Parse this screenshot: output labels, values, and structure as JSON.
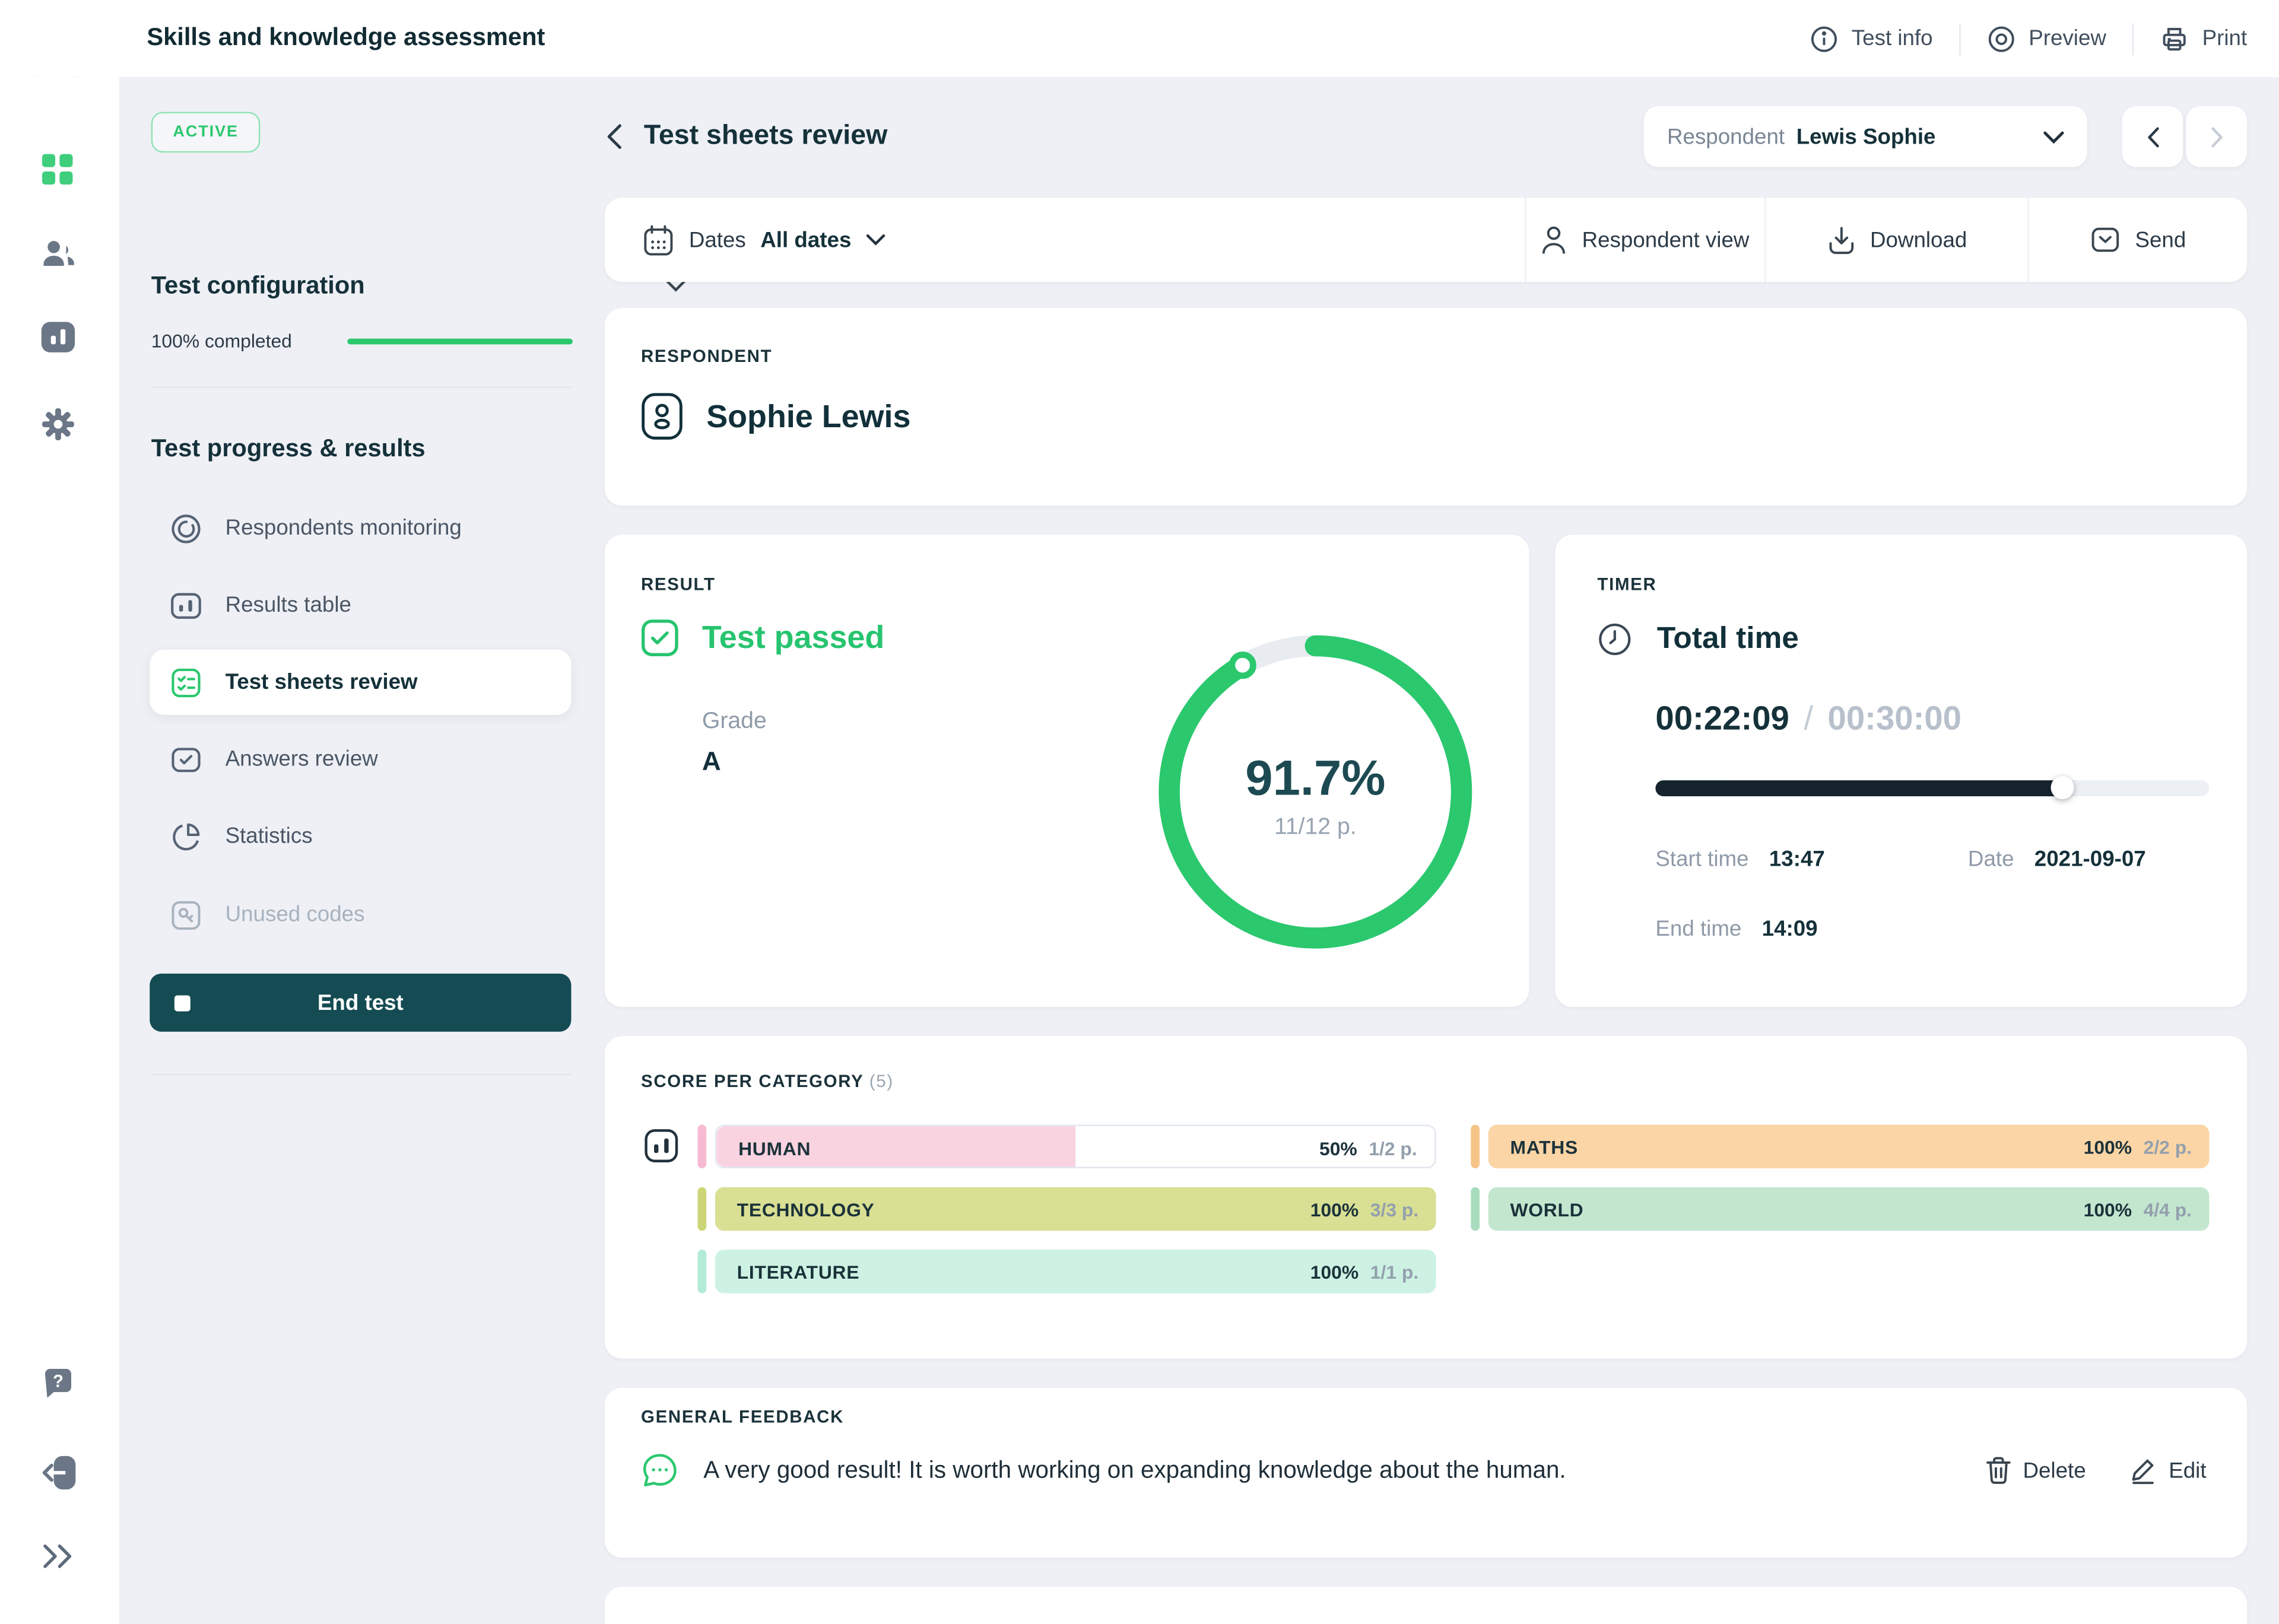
{
  "app": {
    "title": "Skills and knowledge assessment"
  },
  "header": {
    "test_info_label": "Test info",
    "preview_label": "Preview",
    "print_label": "Print"
  },
  "status_badge": "ACTIVE",
  "config_section": {
    "title": "Test configuration",
    "completed_label": "100% completed",
    "completed_pct": 100
  },
  "progress_section": {
    "title": "Test progress & results",
    "items": [
      {
        "label": "Respondents monitoring"
      },
      {
        "label": "Results table"
      },
      {
        "label": "Test sheets review"
      },
      {
        "label": "Answers review"
      },
      {
        "label": "Statistics"
      },
      {
        "label": "Unused codes"
      }
    ],
    "end_test_label": "End test"
  },
  "toolbar": {
    "page_title": "Test sheets review",
    "respondent_label": "Respondent",
    "respondent_value": "Lewis Sophie"
  },
  "filter_bar": {
    "dates_label": "Dates",
    "dates_value": "All dates",
    "respondent_view_label": "Respondent view",
    "download_label": "Download",
    "send_label": "Send"
  },
  "respondent_card": {
    "section_label": "RESPONDENT",
    "name": "Sophie Lewis"
  },
  "result_card": {
    "section_label": "RESULT",
    "status": "Test passed",
    "grade_label": "Grade",
    "grade": "A",
    "score_pct": "91.7%",
    "score_points": "11/12 p.",
    "donut_pct": 91.7,
    "donut_color": "#2bc86e",
    "donut_track": "#e8ecf1"
  },
  "timer_card": {
    "section_label": "TIMER",
    "title": "Total time",
    "elapsed": "00:22:09",
    "separator": "/",
    "total": "00:30:00",
    "progress_pct": 73.8,
    "start_label": "Start time",
    "start_value": "13:47",
    "date_label": "Date",
    "date_value": "2021-09-07",
    "end_label": "End time",
    "end_value": "14:09"
  },
  "score_card": {
    "section_label": "SCORE PER CATEGORY",
    "count": "(5)",
    "categories": [
      {
        "name": "HUMAN",
        "pct": "50%",
        "points": "1/2 p.",
        "fill": 50,
        "color": "#fad3e1",
        "accent": "#f7bad3"
      },
      {
        "name": "TECHNOLOGY",
        "pct": "100%",
        "points": "3/3 p.",
        "fill": 100,
        "color": "#d9df93",
        "accent": "#ccd676"
      },
      {
        "name": "LITERATURE",
        "pct": "100%",
        "points": "1/1 p.",
        "fill": 100,
        "color": "#cdf2e3",
        "accent": "#b2ebd6"
      },
      {
        "name": "MATHS",
        "pct": "100%",
        "points": "2/2 p.",
        "fill": 100,
        "color": "#fbd5a5",
        "accent": "#f7c488"
      },
      {
        "name": "WORLD",
        "pct": "100%",
        "points": "4/4 p.",
        "fill": 100,
        "color": "#c3e6cf",
        "accent": "#a8dcbc"
      }
    ]
  },
  "feedback_card": {
    "section_label": "GENERAL FEEDBACK",
    "text": "A very good result! It is worth working on expanding knowledge about the human.",
    "delete_label": "Delete",
    "edit_label": "Edit"
  },
  "colors": {
    "accent_green": "#2bc86e",
    "dark_teal": "#154b52",
    "page_bg": "#eef0f5"
  }
}
